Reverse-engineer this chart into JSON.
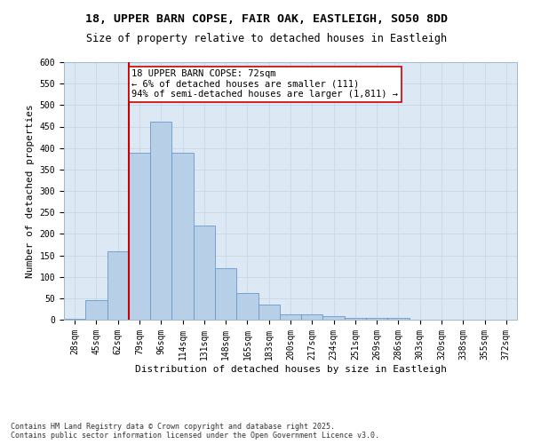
{
  "title_line1": "18, UPPER BARN COPSE, FAIR OAK, EASTLEIGH, SO50 8DD",
  "title_line2": "Size of property relative to detached houses in Eastleigh",
  "xlabel": "Distribution of detached houses by size in Eastleigh",
  "ylabel": "Number of detached properties",
  "categories": [
    "28sqm",
    "45sqm",
    "62sqm",
    "79sqm",
    "96sqm",
    "114sqm",
    "131sqm",
    "148sqm",
    "165sqm",
    "183sqm",
    "200sqm",
    "217sqm",
    "234sqm",
    "251sqm",
    "269sqm",
    "286sqm",
    "303sqm",
    "320sqm",
    "338sqm",
    "355sqm",
    "372sqm"
  ],
  "values": [
    3,
    46,
    160,
    390,
    462,
    390,
    220,
    120,
    63,
    35,
    13,
    13,
    8,
    4,
    5,
    4,
    1,
    1,
    0,
    0,
    0
  ],
  "bar_color": "#b8cfe8",
  "bar_edge_color": "#6699cc",
  "vline_color": "#cc0000",
  "vline_x_idx": 2.5,
  "annotation_text": "18 UPPER BARN COPSE: 72sqm\n← 6% of detached houses are smaller (111)\n94% of semi-detached houses are larger (1,811) →",
  "annotation_box_color": "#ffffff",
  "annotation_box_edge_color": "#cc0000",
  "ylim": [
    0,
    600
  ],
  "yticks": [
    0,
    50,
    100,
    150,
    200,
    250,
    300,
    350,
    400,
    450,
    500,
    550,
    600
  ],
  "grid_color": "#c8d8e8",
  "background_color": "#dce8f4",
  "footer_text": "Contains HM Land Registry data © Crown copyright and database right 2025.\nContains public sector information licensed under the Open Government Licence v3.0.",
  "title_fontsize": 9.5,
  "subtitle_fontsize": 8.5,
  "axis_label_fontsize": 8,
  "tick_fontsize": 7,
  "annotation_fontsize": 7.5,
  "footer_fontsize": 6
}
